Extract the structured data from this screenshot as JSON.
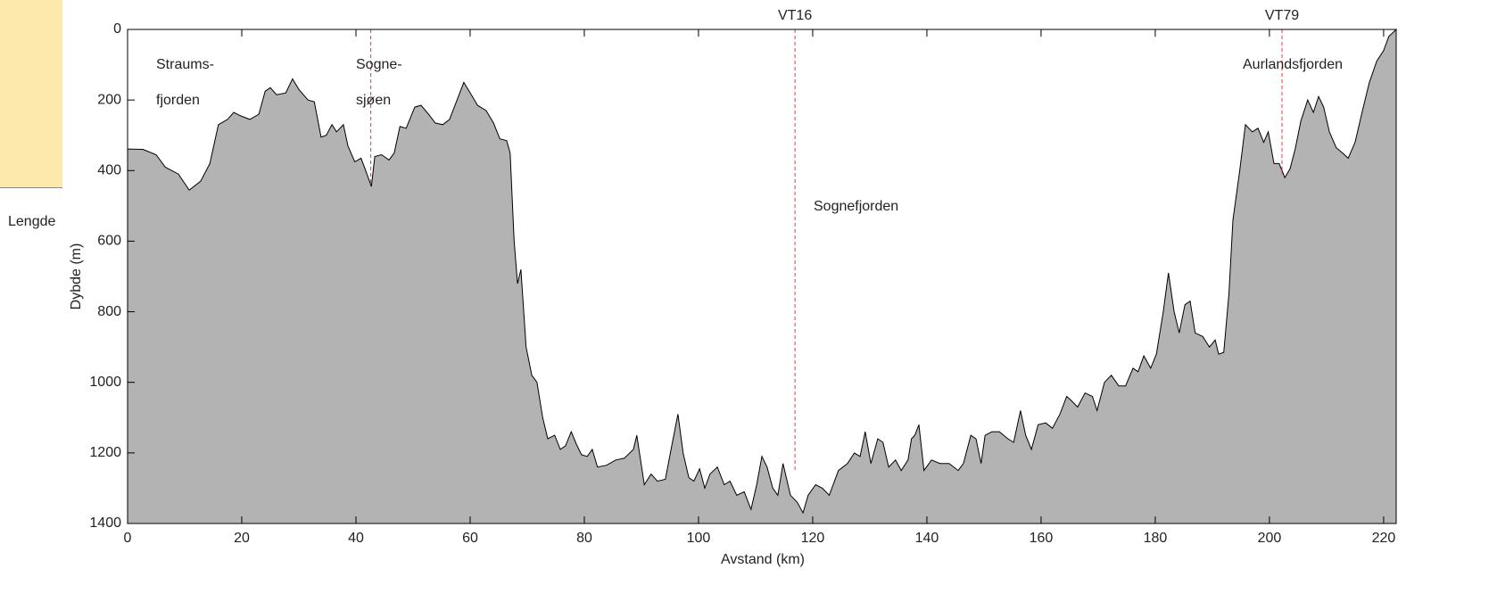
{
  "sidebar_label": "Lengde",
  "chart_data": {
    "type": "area",
    "x_label": "Avstand (km)",
    "y_label": "Dybde (m)",
    "invert_y": true,
    "color": "#b3b3b3",
    "line_color": "#000000",
    "xlim": [
      0,
      222.2
    ],
    "ylim": [
      0,
      1400
    ],
    "xticks": [
      0,
      20,
      40,
      60,
      80,
      100,
      120,
      140,
      160,
      180,
      200,
      220
    ],
    "yticks": [
      0,
      200,
      400,
      600,
      800,
      1000,
      1200,
      1400
    ],
    "x": [
      0,
      2.7,
      5,
      6.6,
      8.9,
      10.8,
      12.8,
      14.4,
      15.9,
      17.5,
      18.6,
      19.8,
      21.4,
      23,
      24.1,
      25,
      26.1,
      27.7,
      28.9,
      30,
      30.8,
      31.6,
      32.7,
      33.9,
      34.8,
      35.8,
      36.6,
      37.8,
      38.6,
      39.8,
      40.9,
      41.7,
      42.7,
      43.3,
      44.5,
      45.8,
      46.7,
      47.7,
      48.8,
      50.3,
      51.4,
      52.7,
      53.9,
      55.2,
      56.4,
      57.7,
      58.9,
      60.2,
      61.3,
      62.8,
      64.1,
      65.2,
      66.4,
      67,
      67.7,
      68.3,
      68.9,
      69.8,
      70.8,
      71.7,
      72.7,
      73.6,
      74.8,
      75.8,
      76.7,
      77.7,
      78.6,
      79.5,
      80.5,
      81.4,
      82.3,
      83.9,
      85.5,
      87,
      88.6,
      89.2,
      90.5,
      91.7,
      92.8,
      94.2,
      95.2,
      96.4,
      97.3,
      98.3,
      99.2,
      100.2,
      101.1,
      102,
      103.3,
      104.5,
      105.5,
      106.7,
      108,
      109.2,
      110.2,
      111.1,
      112,
      113,
      113.9,
      114.8,
      116.1,
      117.3,
      118.3,
      119.2,
      120.5,
      121.7,
      122.9,
      124.5,
      126.1,
      127.3,
      128.3,
      129.2,
      130.2,
      131.4,
      132.3,
      133.3,
      134.5,
      135.5,
      136.7,
      137.3,
      137.9,
      138.6,
      139.5,
      140.8,
      142.3,
      143.9,
      145.5,
      146.4,
      147.7,
      148.6,
      149.5,
      150.2,
      151.4,
      152.7,
      154.2,
      155.2,
      156.4,
      157.3,
      158.3,
      159.5,
      160.8,
      162,
      163.3,
      164.5,
      165.2,
      166.4,
      167.7,
      169,
      169.8,
      171.1,
      172.3,
      173.6,
      174.8,
      176.1,
      177,
      178,
      179.2,
      180.2,
      181.4,
      182.3,
      183.3,
      184.2,
      185.2,
      186.1,
      187,
      188.3,
      189.5,
      190.5,
      191.1,
      192,
      192.9,
      193.6,
      194.8,
      195.8,
      197,
      198,
      199,
      199.8,
      200.8,
      201.7,
      202.7,
      203.6,
      204.5,
      205.5,
      206.7,
      207.7,
      208.6,
      209.5,
      210.5,
      211.7,
      212.8,
      213.8,
      215,
      216.3,
      217.5,
      218.8,
      220,
      220.9,
      222.2
    ],
    "series": [
      {
        "name": "Dybde",
        "values": [
          339,
          340,
          355,
          390,
          410,
          455,
          430,
          380,
          270,
          255,
          235,
          245,
          255,
          240,
          175,
          165,
          185,
          180,
          140,
          170,
          185,
          200,
          205,
          305,
          300,
          270,
          290,
          270,
          330,
          375,
          365,
          400,
          445,
          360,
          355,
          370,
          350,
          275,
          280,
          220,
          215,
          240,
          265,
          270,
          255,
          200,
          150,
          185,
          215,
          230,
          265,
          310,
          315,
          350,
          600,
          720,
          680,
          900,
          980,
          1000,
          1100,
          1160,
          1150,
          1190,
          1180,
          1140,
          1175,
          1205,
          1210,
          1190,
          1240,
          1235,
          1220,
          1215,
          1190,
          1150,
          1290,
          1260,
          1280,
          1275,
          1190,
          1090,
          1200,
          1270,
          1280,
          1245,
          1300,
          1260,
          1240,
          1290,
          1280,
          1320,
          1310,
          1360,
          1290,
          1210,
          1240,
          1300,
          1320,
          1230,
          1320,
          1340,
          1370,
          1320,
          1290,
          1300,
          1320,
          1250,
          1230,
          1200,
          1210,
          1140,
          1230,
          1160,
          1170,
          1240,
          1220,
          1250,
          1220,
          1160,
          1150,
          1120,
          1250,
          1220,
          1230,
          1230,
          1250,
          1230,
          1150,
          1160,
          1230,
          1150,
          1140,
          1140,
          1160,
          1170,
          1080,
          1150,
          1190,
          1120,
          1115,
          1130,
          1090,
          1040,
          1050,
          1070,
          1030,
          1040,
          1080,
          1000,
          980,
          1010,
          1010,
          960,
          970,
          925,
          960,
          920,
          800,
          690,
          800,
          860,
          780,
          770,
          860,
          870,
          900,
          880,
          920,
          915,
          750,
          540,
          400,
          270,
          290,
          280,
          320,
          290,
          380,
          380,
          420,
          395,
          340,
          260,
          200,
          235,
          190,
          220,
          290,
          335,
          350,
          365,
          320,
          230,
          150,
          90,
          60,
          20,
          0
        ]
      }
    ],
    "reference_lines": [
      {
        "x": 42.6,
        "depth": 435
      },
      {
        "label": "VT16",
        "x": 116.9,
        "depth": 1248
      },
      {
        "label": "VT79",
        "x": 202.2,
        "depth": 410
      }
    ],
    "annotations": [
      "Straums-",
      "fjorden",
      "Sogne-",
      "sjøen",
      "Aurlandsfjorden",
      "Sognefjorden"
    ],
    "reference_line_color": "#e8374a"
  }
}
